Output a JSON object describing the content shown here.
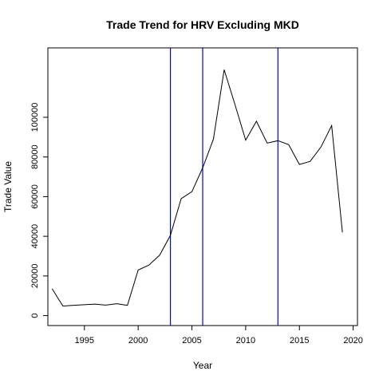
{
  "chart_data": {
    "type": "line",
    "title": "Trade Trend for HRV Excluding MKD",
    "xlabel": "Year",
    "ylabel": "Trade Value",
    "xlim": [
      1991.6,
      2020.4
    ],
    "ylim": [
      -5000,
      135000
    ],
    "x_ticks": [
      1995,
      2000,
      2005,
      2010,
      2015,
      2020
    ],
    "y_ticks": [
      0,
      20000,
      40000,
      60000,
      80000,
      100000
    ],
    "grid": false,
    "line_color": "#000000",
    "vline_color": "#0000ff",
    "vlines": [
      2003,
      2006,
      2013
    ],
    "series": [
      {
        "x": [
          1992,
          1993,
          1994,
          1995,
          1996,
          1997,
          1998,
          1999,
          2000,
          2001,
          2002,
          2003,
          2004,
          2005,
          2006,
          2007,
          2008,
          2009,
          2010,
          2011,
          2012,
          2013,
          2014,
          2015,
          2016,
          2017,
          2018,
          2019
        ],
        "values": [
          13500,
          4800,
          5200,
          5500,
          5800,
          5300,
          6000,
          5200,
          23000,
          25500,
          30500,
          40500,
          59000,
          62500,
          74500,
          89000,
          124000,
          106500,
          88500,
          98000,
          87000,
          88200,
          86200,
          76200,
          77800,
          85000,
          95800,
          42000
        ]
      }
    ]
  }
}
